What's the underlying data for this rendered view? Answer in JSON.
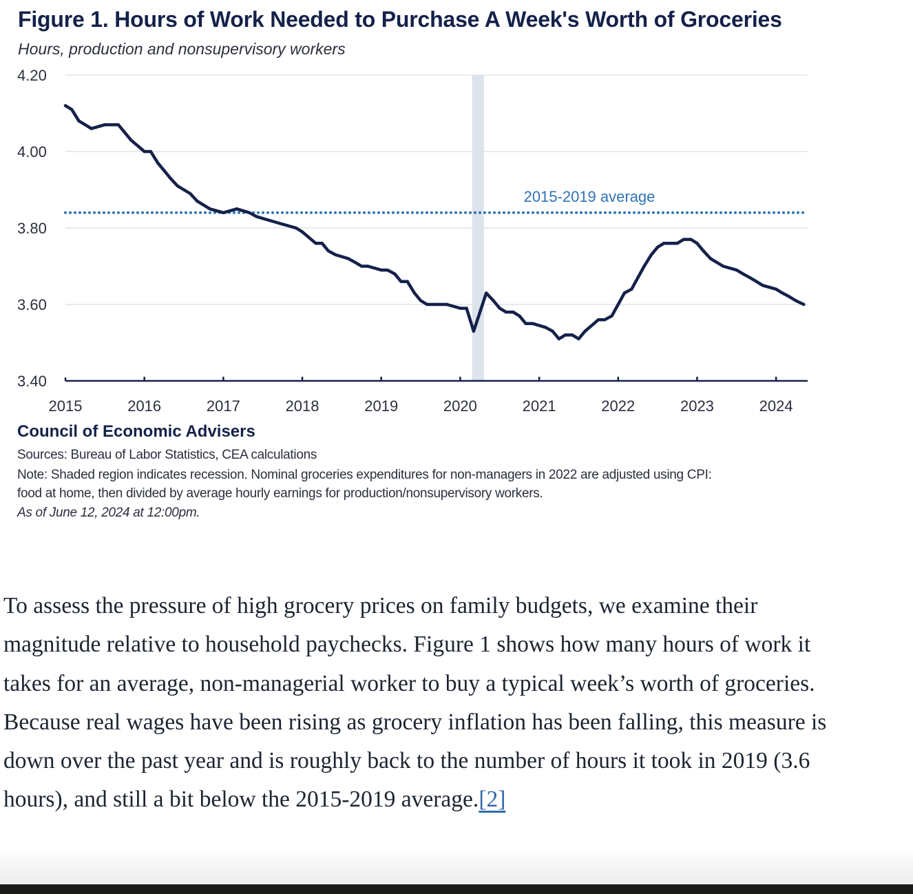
{
  "figure": {
    "title": "Figure 1. Hours of Work Needed to Purchase A Week's Worth of Groceries",
    "subtitle": "Hours, production and nonsupervisory workers",
    "credit": "Council of Economic Advisers",
    "sources": "Sources: Bureau of Labor Statistics, CEA calculations",
    "note_line1": "Note: Shaded region indicates recession. Nominal groceries expenditures for non-managers in 2022 are adjusted using CPI:",
    "note_line2": "food at home, then divided by average hourly earnings for production/nonsupervisory workers.",
    "as_of": "As of June 12, 2024 at 12:00pm."
  },
  "chart_data": {
    "type": "line",
    "title": "Figure 1. Hours of Work Needed to Purchase A Week's Worth of Groceries",
    "ylabel": "Hours, production and nonsupervisory workers",
    "xlabel": "",
    "xlim": [
      2015,
      2024.4
    ],
    "ylim": [
      3.4,
      4.2
    ],
    "y_ticks": [
      "4.20",
      "4.00",
      "3.80",
      "3.60",
      "3.40"
    ],
    "x_ticks": [
      "2015",
      "2016",
      "2017",
      "2018",
      "2019",
      "2020",
      "2021",
      "2022",
      "2023",
      "2024"
    ],
    "grid": "horizontal",
    "recession": {
      "start": 2020.15,
      "end": 2020.3
    },
    "reference_line": {
      "label": "2015-2019 average",
      "value": 3.84
    },
    "colors": {
      "line": "#14214a",
      "reference": "#2f73b5",
      "recession": "#dde3ec",
      "grid": "#dfe3ea",
      "axis": "#14214a"
    },
    "series": [
      {
        "name": "Hours of work needed",
        "x": [
          2015.0,
          2015.08,
          2015.17,
          2015.33,
          2015.5,
          2015.67,
          2015.83,
          2016.0,
          2016.08,
          2016.17,
          2016.25,
          2016.33,
          2016.42,
          2016.5,
          2016.58,
          2016.67,
          2016.83,
          2017.0,
          2017.17,
          2017.33,
          2017.42,
          2017.58,
          2017.75,
          2017.92,
          2018.0,
          2018.17,
          2018.25,
          2018.33,
          2018.42,
          2018.58,
          2018.67,
          2018.75,
          2018.83,
          2019.0,
          2019.08,
          2019.17,
          2019.25,
          2019.33,
          2019.42,
          2019.5,
          2019.58,
          2019.67,
          2019.83,
          2020.0,
          2020.08,
          2020.17,
          2020.25,
          2020.33,
          2020.42,
          2020.5,
          2020.58,
          2020.67,
          2020.75,
          2020.83,
          2020.92,
          2021.08,
          2021.17,
          2021.25,
          2021.33,
          2021.42,
          2021.5,
          2021.58,
          2021.75,
          2021.83,
          2021.92,
          2022.0,
          2022.08,
          2022.17,
          2022.25,
          2022.33,
          2022.42,
          2022.5,
          2022.58,
          2022.67,
          2022.75,
          2022.83,
          2022.92,
          2023.0,
          2023.08,
          2023.17,
          2023.25,
          2023.33,
          2023.5,
          2023.58,
          2023.67,
          2023.75,
          2023.83,
          2024.0,
          2024.08,
          2024.17,
          2024.25,
          2024.35
        ],
        "values": [
          4.12,
          4.11,
          4.08,
          4.06,
          4.07,
          4.07,
          4.03,
          4.0,
          4.0,
          3.97,
          3.95,
          3.93,
          3.91,
          3.9,
          3.89,
          3.87,
          3.85,
          3.84,
          3.85,
          3.84,
          3.83,
          3.82,
          3.81,
          3.8,
          3.79,
          3.76,
          3.76,
          3.74,
          3.73,
          3.72,
          3.71,
          3.7,
          3.7,
          3.69,
          3.69,
          3.68,
          3.66,
          3.66,
          3.63,
          3.61,
          3.6,
          3.6,
          3.6,
          3.59,
          3.59,
          3.53,
          3.58,
          3.63,
          3.61,
          3.59,
          3.58,
          3.58,
          3.57,
          3.55,
          3.55,
          3.54,
          3.53,
          3.51,
          3.52,
          3.52,
          3.51,
          3.53,
          3.56,
          3.56,
          3.57,
          3.6,
          3.63,
          3.64,
          3.67,
          3.7,
          3.73,
          3.75,
          3.76,
          3.76,
          3.76,
          3.77,
          3.77,
          3.76,
          3.74,
          3.72,
          3.71,
          3.7,
          3.69,
          3.68,
          3.67,
          3.66,
          3.65,
          3.64,
          3.63,
          3.62,
          3.61,
          3.6
        ]
      }
    ]
  },
  "article": {
    "text": "To assess the pressure of high grocery prices on family budgets, we examine their magnitude relative to household paychecks. Figure 1 shows how many hours of work it takes for an average, non-managerial worker to buy a typical week’s worth of groceries. Because real wages have been rising as grocery inflation has been falling, this measure is down over the past year and is roughly back to the number of hours it took in 2019 (3.6 hours), and still a bit below the 2015-2019 average.",
    "footnote_link": "[2]"
  }
}
